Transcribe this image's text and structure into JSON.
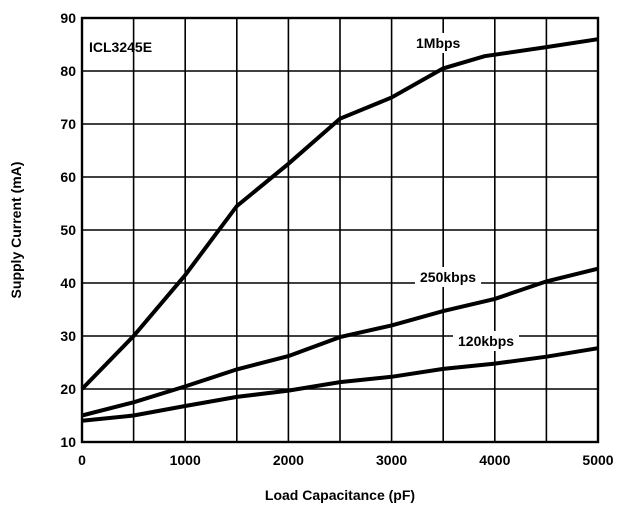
{
  "chart_data": {
    "type": "line",
    "title": "",
    "xlabel": "Load Capacitance (pF)",
    "ylabel": "Supply Current (mA)",
    "xlim": [
      0,
      5000
    ],
    "ylim": [
      10,
      90
    ],
    "xticks": [
      0,
      1000,
      2000,
      3000,
      4000,
      5000
    ],
    "yticks": [
      10,
      20,
      30,
      40,
      50,
      60,
      70,
      80,
      90
    ],
    "x_minor_gridlines": [
      500,
      1500,
      2500,
      3500,
      4500
    ],
    "grid": true,
    "legend": "none",
    "annotation": "ICL3245E",
    "series": [
      {
        "name": "1Mbps",
        "x": [
          0,
          500,
          1000,
          1500,
          2000,
          2500,
          3000,
          3500,
          3900,
          4500,
          5000
        ],
        "values": [
          20,
          30,
          41.5,
          54.5,
          62.5,
          71,
          75,
          80.5,
          82.8,
          84.5,
          86
        ]
      },
      {
        "name": "250kbps",
        "x": [
          0,
          500,
          1000,
          1500,
          2000,
          2500,
          3000,
          3500,
          4000,
          4500,
          5000
        ],
        "values": [
          15,
          17.5,
          20.5,
          23.7,
          26.2,
          29.8,
          32,
          34.7,
          37,
          40.3,
          42.7
        ]
      },
      {
        "name": "120kbps",
        "x": [
          0,
          500,
          1000,
          1500,
          2000,
          2500,
          3000,
          3500,
          4000,
          4500,
          5000
        ],
        "values": [
          14,
          15,
          16.8,
          18.5,
          19.7,
          21.3,
          22.3,
          23.8,
          24.8,
          26.1,
          27.7
        ]
      }
    ]
  }
}
